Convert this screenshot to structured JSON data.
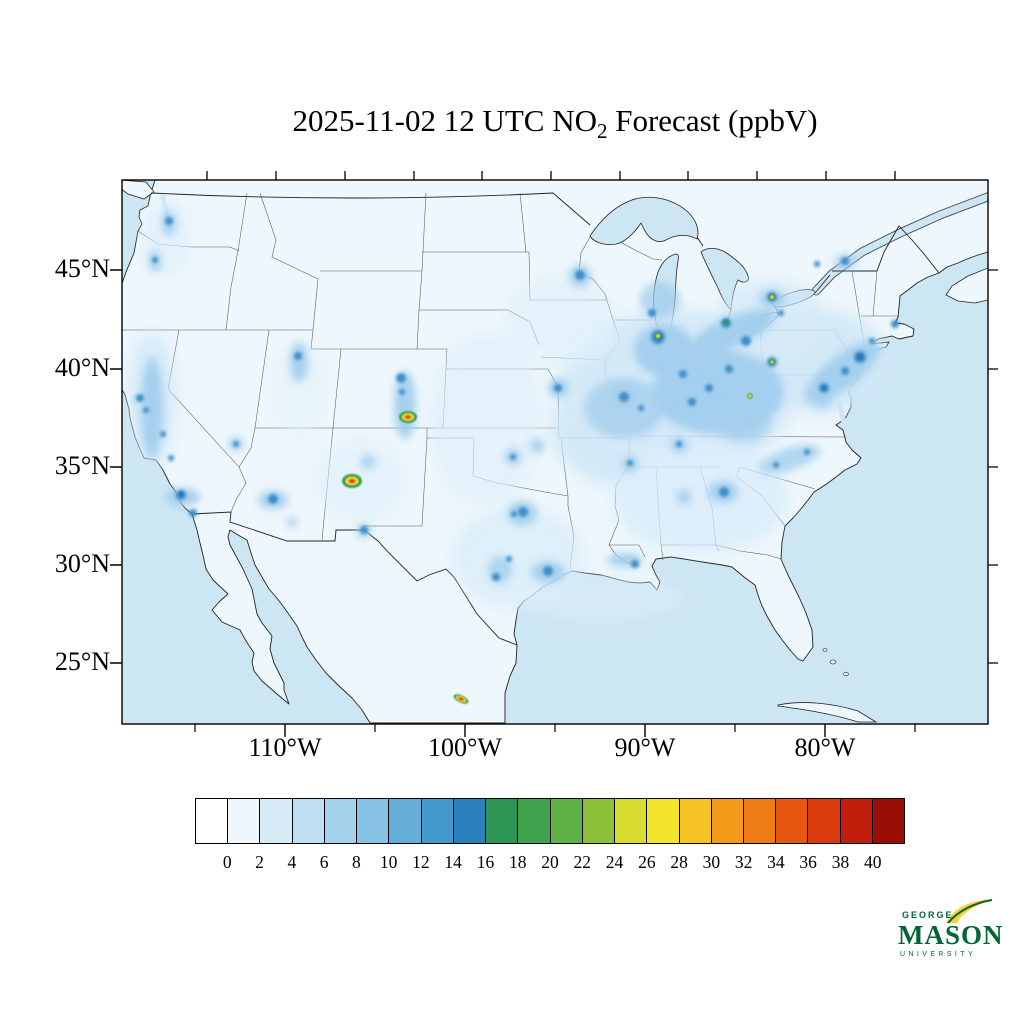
{
  "title": {
    "prefix": "2025-11-02 12 UTC NO",
    "subscript": "2",
    "suffix": " Forecast (ppbV)"
  },
  "map": {
    "lat_axis_labels": [
      "45°N",
      "40°N",
      "35°N",
      "30°N",
      "25°N"
    ],
    "lon_axis_labels": [
      "110°W",
      "100°W",
      "90°W",
      "80°W"
    ]
  },
  "colorbar": {
    "tick_labels": [
      "0",
      "2",
      "4",
      "6",
      "8",
      "10",
      "12",
      "14",
      "16",
      "18",
      "20",
      "22",
      "24",
      "26",
      "28",
      "30",
      "32",
      "34",
      "36",
      "38",
      "40"
    ],
    "colors": [
      "#ffffff",
      "#eef7fc",
      "#d8ecf8",
      "#bfe0f3",
      "#a4d2ec",
      "#86c2e3",
      "#65aed8",
      "#4399cb",
      "#2a81bc",
      "#2d9556",
      "#3fa34d",
      "#5fb148",
      "#8ec13a",
      "#d8dc30",
      "#f4e52c",
      "#f6c525",
      "#f49a1b",
      "#ef7b16",
      "#e75712",
      "#d93b0f",
      "#c0200b",
      "#9a0e05"
    ]
  },
  "logo": {
    "top": "GEORGE",
    "name": "MASON",
    "bottom": "UNIVERSITY",
    "green": "#006633",
    "gold": "#FFCC33"
  },
  "chart_data": {
    "type": "heatmap",
    "title": "2025-11-02 12 UTC NO2 Forecast (ppbV)",
    "units": "ppbV",
    "region": "Continental United States with adjacent southern Canada and northern Mexico",
    "lat_ticks_deg_north": [
      25,
      30,
      35,
      40,
      45
    ],
    "lon_ticks_deg_west": [
      110,
      100,
      90,
      80
    ],
    "colorbar_ticks": [
      0,
      2,
      4,
      6,
      8,
      10,
      12,
      14,
      16,
      18,
      20,
      22,
      24,
      26,
      28,
      30,
      32,
      34,
      36,
      38,
      40
    ],
    "colorbar_range": [
      0,
      40
    ],
    "legend_position": "bottom",
    "background_level_ppbv": "0-4 over most land and ocean",
    "features": [
      {
        "name": "Midwest / Ohio Valley regional plume",
        "approx_value_ppbv": "4-10"
      },
      {
        "name": "Northeast corridor (Washington-Philadelphia-New York-Boston)",
        "approx_value_ppbv": "6-14"
      },
      {
        "name": "Chicago / southern Lake Michigan urban core",
        "approx_value_ppbv": "14-22"
      },
      {
        "name": "Toronto area point maximum",
        "approx_value_ppbv": "16-24"
      },
      {
        "name": "Pittsburgh / Ohio River valley point sources",
        "approx_value_ppbv": "14-20"
      },
      {
        "name": "Four Corners / northern New Mexico point source (red core)",
        "approx_value_ppbv": "38-40+"
      },
      {
        "name": "Central New Mexico point source (red core)",
        "approx_value_ppbv": "40+"
      },
      {
        "name": "Monterrey, Mexico plume (red core)",
        "approx_value_ppbv": "36-40"
      },
      {
        "name": "California Central Valley, Los Angeles, San Diego",
        "approx_value_ppbv": "6-14"
      },
      {
        "name": "Texas cities (Dallas-Fort Worth, Houston, San Antonio)",
        "approx_value_ppbv": "6-12"
      },
      {
        "name": "Southeast cities (Atlanta, Birmingham, Nashville)",
        "approx_value_ppbv": "4-10"
      },
      {
        "name": "Colorado Front Range / Denver",
        "approx_value_ppbv": "6-12"
      },
      {
        "name": "Phoenix, Salt Lake City, Las Vegas cores",
        "approx_value_ppbv": "6-10"
      },
      {
        "name": "Seattle / Portland",
        "approx_value_ppbv": "4-8"
      },
      {
        "name": "Minneapolis, St. Louis, Kansas City cores",
        "approx_value_ppbv": "8-14"
      }
    ]
  }
}
